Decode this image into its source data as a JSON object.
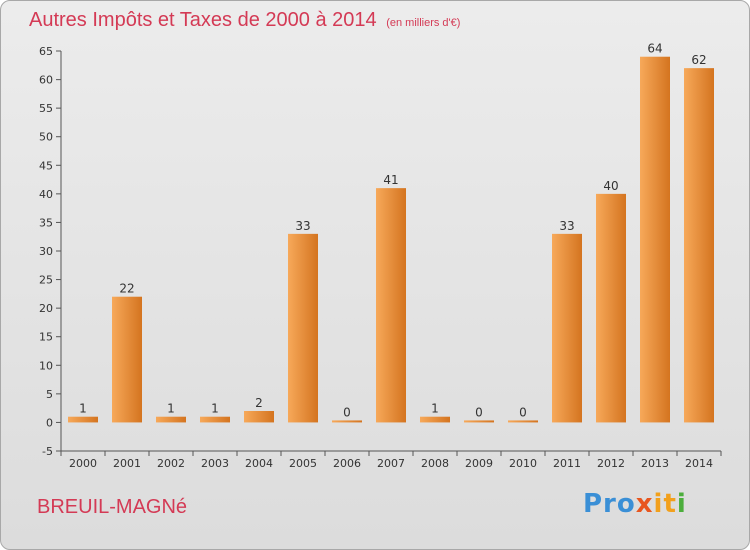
{
  "header": {
    "title": "Autres Impôts et Taxes de 2000 à 2014",
    "subtitle": "(en milliers d'€)"
  },
  "footer": {
    "town": "BREUIL-MAGNé",
    "logo_parts": [
      "Pro",
      "x",
      "it",
      "i"
    ]
  },
  "colors": {
    "bar_light": "#f7a95a",
    "bar_dark": "#d4741f",
    "text_accent": "#d43a55"
  },
  "chart_data": {
    "type": "bar",
    "title": "Autres Impôts et Taxes de 2000 à 2014",
    "subtitle": "(en milliers d'€)",
    "xlabel": "",
    "ylabel": "",
    "categories": [
      "2000",
      "2001",
      "2002",
      "2003",
      "2004",
      "2005",
      "2006",
      "2007",
      "2008",
      "2009",
      "2010",
      "2011",
      "2012",
      "2013",
      "2014"
    ],
    "values": [
      1,
      22,
      1,
      1,
      2,
      33,
      0,
      41,
      1,
      0,
      0,
      33,
      40,
      64,
      62
    ],
    "ylim": [
      -5,
      65
    ],
    "yticks": [
      -5,
      0,
      5,
      10,
      15,
      20,
      25,
      30,
      35,
      40,
      45,
      50,
      55,
      60,
      65
    ],
    "grid": false,
    "legend": "none"
  }
}
